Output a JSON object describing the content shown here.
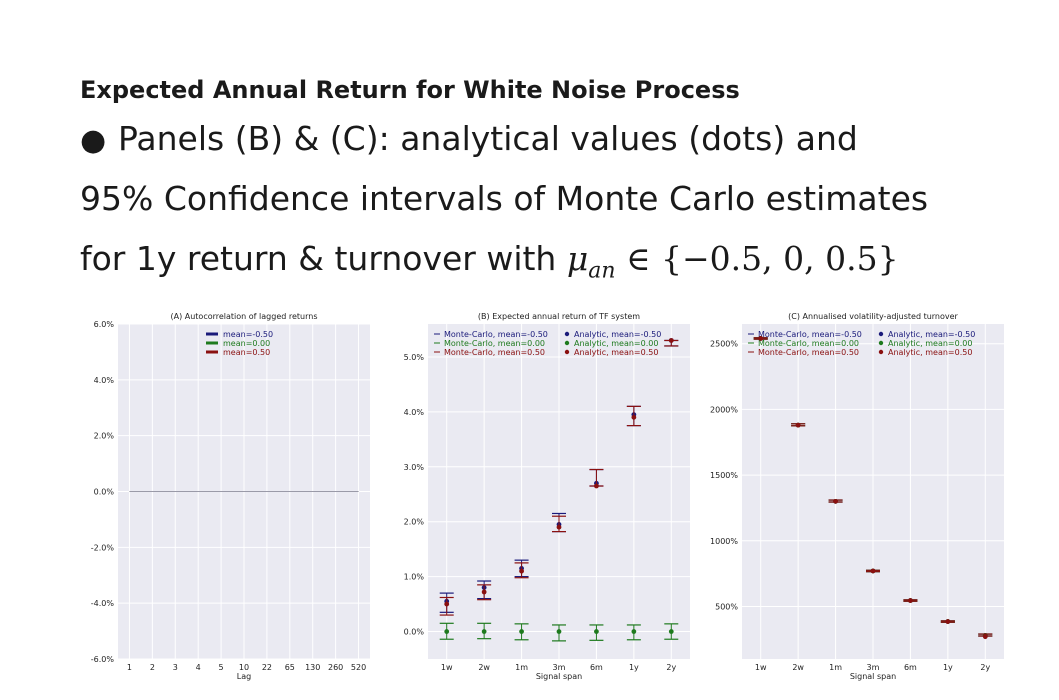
{
  "slide": {
    "title": "Expected Annual Return for White Noise Process",
    "bullet_lines": [
      "Panels (B) & (C): analytical values (dots) and",
      "95% Confidence intervals of Monte Carlo estimates",
      "for 1y return & turnover with"
    ],
    "math_symbol": "μ",
    "math_subscript": "an",
    "math_set": "∈ {−0.5, 0, 0.5}"
  },
  "colors": {
    "neg": "#1a1a7a",
    "zero": "#1e7a1e",
    "pos": "#8a1010",
    "panel_bg": "#eaeaf2",
    "grid": "#ffffff"
  },
  "chart_data": [
    {
      "type": "line",
      "title": "(A) Autocorrelation of lagged returns",
      "xlabel": "Lag",
      "categories": [
        "1",
        "2",
        "3",
        "4",
        "5",
        "10",
        "22",
        "65",
        "130",
        "260",
        "520"
      ],
      "ylim": [
        -6.0,
        6.0
      ],
      "yticks": [
        "6.0%",
        "4.0%",
        "2.0%",
        "0.0%",
        "-2.0%",
        "-4.0%",
        "-6.0%"
      ],
      "ytick_values": [
        6,
        4,
        2,
        0,
        -2,
        -4,
        -6
      ],
      "series": [
        {
          "name": "mean=-0.50",
          "color": "#1a1a7a",
          "values": [
            0,
            0,
            0,
            0,
            0,
            0,
            0,
            0,
            0,
            0,
            0
          ]
        },
        {
          "name": "mean=0.00",
          "color": "#1e7a1e",
          "values": [
            0,
            0,
            0,
            0,
            0,
            0,
            0,
            0,
            0,
            0,
            0
          ]
        },
        {
          "name": "mean=0.50",
          "color": "#8a1010",
          "values": [
            0,
            0,
            0,
            0,
            0,
            0,
            0,
            0,
            0,
            0,
            0
          ]
        }
      ],
      "legend_position": "top-center",
      "grid": true
    },
    {
      "type": "scatter",
      "title": "(B) Expected annual return of TF system",
      "xlabel": "Signal span",
      "categories": [
        "1w",
        "2w",
        "1m",
        "3m",
        "6m",
        "1y",
        "2y"
      ],
      "ylim": [
        -0.5,
        5.6
      ],
      "yticks": [
        "5.0%",
        "4.0%",
        "3.0%",
        "2.0%",
        "1.0%",
        "0.0%"
      ],
      "ytick_values": [
        5,
        4,
        3,
        2,
        1,
        0
      ],
      "legend": [
        "Monte-Carlo, mean=-0.50",
        "Analytic, mean=-0.50",
        "Monte-Carlo, mean=0.00",
        "Analytic, mean=0.00",
        "Monte-Carlo, mean=0.50",
        "Analytic, mean=0.50"
      ],
      "legend_position": "top",
      "series": [
        {
          "name": "mean=-0.50",
          "color": "#1a1a7a",
          "analytic": [
            0.55,
            0.8,
            1.15,
            1.95,
            2.7,
            3.95,
            5.3
          ],
          "ci_low": [
            0.35,
            0.6,
            1.0,
            1.82,
            2.65,
            3.75,
            5.2
          ],
          "ci_high": [
            0.7,
            0.92,
            1.3,
            2.15,
            2.95,
            4.1,
            5.3
          ]
        },
        {
          "name": "mean=0.00",
          "color": "#1e7a1e",
          "analytic": [
            0.0,
            0.0,
            0.0,
            0.0,
            0.0,
            0.0,
            0.0
          ],
          "ci_low": [
            -0.14,
            -0.13,
            -0.15,
            -0.17,
            -0.16,
            -0.15,
            -0.14
          ],
          "ci_high": [
            0.15,
            0.15,
            0.14,
            0.12,
            0.12,
            0.12,
            0.14
          ]
        },
        {
          "name": "mean=0.50",
          "color": "#8a1010",
          "analytic": [
            0.5,
            0.72,
            1.1,
            1.9,
            2.65,
            3.9,
            5.3
          ],
          "ci_low": [
            0.3,
            0.58,
            0.98,
            1.82,
            2.65,
            3.75,
            5.2
          ],
          "ci_high": [
            0.62,
            0.85,
            1.25,
            2.1,
            2.95,
            4.1,
            5.3
          ]
        }
      ],
      "grid": true
    },
    {
      "type": "scatter",
      "title": "(C) Annualised volatility-adjusted turnover",
      "xlabel": "Signal span",
      "categories": [
        "1w",
        "2w",
        "1m",
        "3m",
        "6m",
        "1y",
        "2y"
      ],
      "ylim": [
        100,
        2650
      ],
      "yticks": [
        "2500%",
        "2000%",
        "1500%",
        "1000%",
        "500%"
      ],
      "ytick_values": [
        2500,
        2000,
        1500,
        1000,
        500
      ],
      "legend": [
        "Monte-Carlo, mean=-0.50",
        "Analytic, mean=-0.50",
        "Monte-Carlo, mean=0.00",
        "Analytic, mean=0.00",
        "Monte-Carlo, mean=0.50",
        "Analytic, mean=0.50"
      ],
      "legend_position": "top",
      "series": [
        {
          "name": "mean=-0.50",
          "color": "#1a1a7a",
          "analytic": [
            2540,
            1880,
            1300,
            770,
            545,
            385,
            280
          ],
          "ci_low": [
            2535,
            1875,
            1295,
            765,
            540,
            380,
            275
          ],
          "ci_high": [
            2545,
            1890,
            1310,
            775,
            550,
            390,
            290
          ]
        },
        {
          "name": "mean=0.00",
          "color": "#1e7a1e",
          "analytic": [
            2540,
            1880,
            1300,
            770,
            545,
            385,
            280
          ],
          "ci_low": [
            2535,
            1875,
            1295,
            765,
            540,
            380,
            275
          ],
          "ci_high": [
            2545,
            1890,
            1310,
            775,
            550,
            390,
            290
          ]
        },
        {
          "name": "mean=0.50",
          "color": "#8a1010",
          "analytic": [
            2540,
            1880,
            1300,
            770,
            545,
            385,
            270
          ],
          "ci_low": [
            2535,
            1875,
            1295,
            765,
            540,
            380,
            275
          ],
          "ci_high": [
            2545,
            1890,
            1310,
            775,
            550,
            390,
            290
          ]
        }
      ],
      "grid": true
    }
  ]
}
